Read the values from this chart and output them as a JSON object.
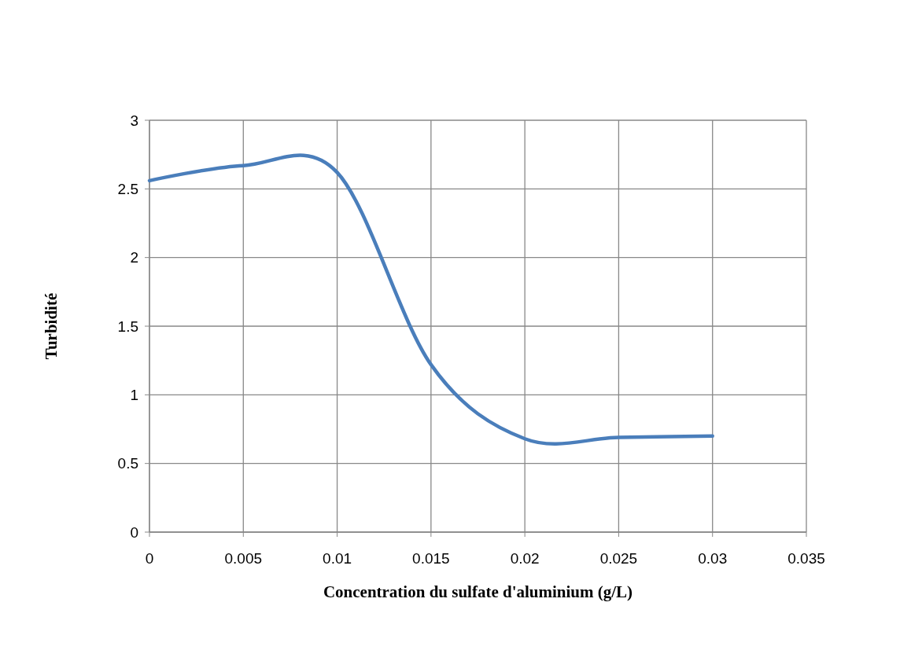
{
  "chart_data": {
    "type": "line",
    "xlabel": "Concentration du sulfate d'aluminium (g/L)",
    "ylabel": "Turbidité",
    "x": [
      0,
      0.005,
      0.01,
      0.015,
      0.02,
      0.025,
      0.03
    ],
    "series": [
      {
        "color": "#4a7ebb",
        "values": [
          2.56,
          2.67,
          2.62,
          1.22,
          0.68,
          0.69,
          0.7
        ]
      }
    ],
    "xlim": [
      0,
      0.035
    ],
    "xticks": [
      0,
      0.005,
      0.01,
      0.015,
      0.02,
      0.025,
      0.03,
      0.035
    ],
    "ylim": [
      0,
      3
    ],
    "yticks": [
      0,
      0.5,
      1,
      1.5,
      2,
      2.5,
      3
    ],
    "grid": true,
    "marker": "none",
    "line_style": "solid"
  }
}
